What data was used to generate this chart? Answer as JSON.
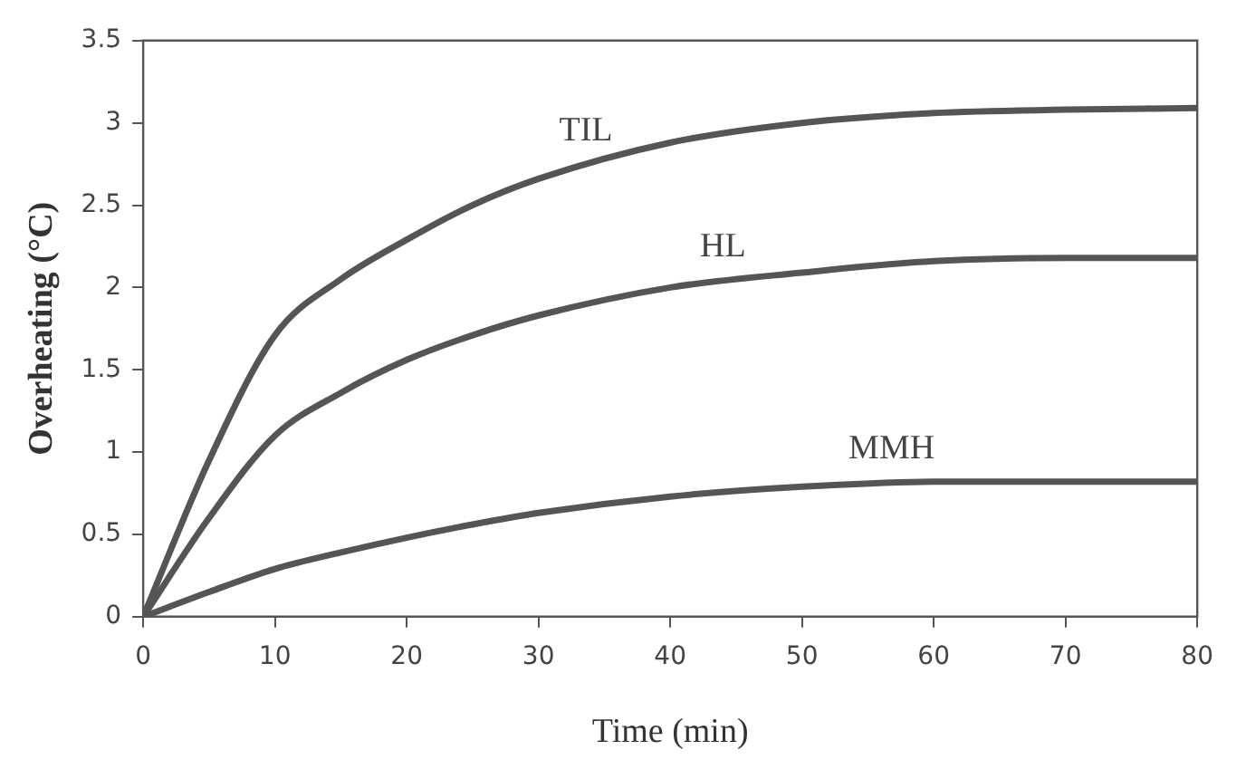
{
  "chart_data": {
    "type": "line",
    "xlabel": "Time (min)",
    "ylabel": "Overheating (°C)",
    "xlim": [
      0,
      80
    ],
    "xticks": [
      0,
      10,
      20,
      30,
      40,
      50,
      60,
      70,
      80
    ],
    "ylim": [
      0,
      3.5
    ],
    "yticks": [
      0,
      0.5,
      1,
      1.5,
      2,
      2.5,
      3,
      3.5
    ],
    "grid": false,
    "legend": false,
    "marker": "none",
    "line_style": "solid",
    "x": [
      0,
      5,
      10,
      15,
      20,
      25,
      30,
      40,
      50,
      60,
      70,
      80
    ],
    "series": [
      {
        "name": "TIL",
        "color": "#555555",
        "values": [
          0,
          0.95,
          1.71,
          2.05,
          2.29,
          2.5,
          2.66,
          2.88,
          3.0,
          3.06,
          3.08,
          3.09
        ]
      },
      {
        "name": "HL",
        "color": "#555555",
        "values": [
          0,
          0.6,
          1.1,
          1.36,
          1.56,
          1.71,
          1.83,
          2.0,
          2.09,
          2.16,
          2.18,
          2.18
        ]
      },
      {
        "name": "MMH",
        "color": "#555555",
        "values": [
          0,
          0.15,
          0.29,
          0.39,
          0.48,
          0.56,
          0.63,
          0.73,
          0.79,
          0.82,
          0.82,
          0.82
        ]
      }
    ]
  }
}
